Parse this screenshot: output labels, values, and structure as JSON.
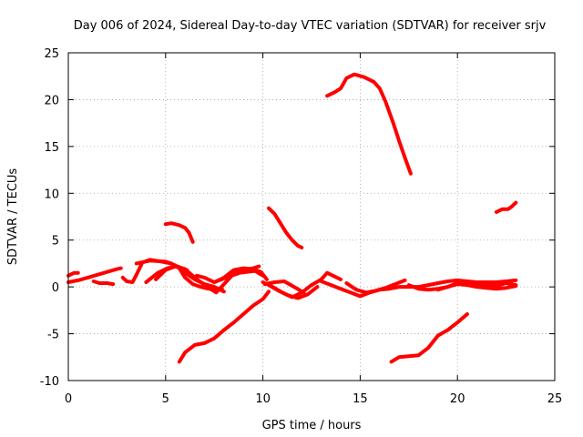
{
  "chart_data": {
    "type": "line",
    "title": "Day 006 of 2024, Sidereal Day-to-day VTEC variation (SDTVAR) for receiver srjv",
    "xlabel": "GPS time / hours",
    "ylabel": "SDTVAR / TECUs",
    "xlim": [
      0,
      25
    ],
    "ylim": [
      -10,
      25
    ],
    "xticks": [
      0,
      5,
      10,
      15,
      20,
      25
    ],
    "yticks": [
      -10,
      -5,
      0,
      5,
      10,
      15,
      20,
      25
    ],
    "grid": true,
    "color": "#ff0000",
    "series": [
      {
        "name": "track-01",
        "x": [
          0.0,
          0.5,
          1.0,
          1.5,
          2.0,
          2.5,
          2.7
        ],
        "y": [
          0.5,
          0.7,
          1.0,
          1.3,
          1.6,
          1.9,
          2.0
        ]
      },
      {
        "name": "track-02",
        "x": [
          0.0,
          0.3,
          0.5
        ],
        "y": [
          1.2,
          1.5,
          1.5
        ]
      },
      {
        "name": "track-03",
        "x": [
          1.3,
          1.6,
          2.0,
          2.3
        ],
        "y": [
          0.6,
          0.4,
          0.4,
          0.3
        ]
      },
      {
        "name": "track-04",
        "x": [
          2.8,
          3.0,
          3.3,
          3.5,
          3.8,
          4.2,
          4.8,
          5.3,
          5.7,
          6.0,
          6.4,
          6.8,
          7.2,
          7.6,
          7.9
        ],
        "y": [
          1.0,
          0.6,
          0.5,
          1.3,
          2.6,
          2.9,
          2.7,
          2.5,
          2.0,
          1.0,
          0.3,
          0.0,
          -0.2,
          -0.3,
          -0.2
        ]
      },
      {
        "name": "track-05",
        "x": [
          3.5,
          4.2,
          5.0,
          5.5,
          6.0,
          6.5,
          7.0,
          7.5,
          8.0
        ],
        "y": [
          2.5,
          2.8,
          2.7,
          2.3,
          1.5,
          0.8,
          0.3,
          0.0,
          -0.5
        ]
      },
      {
        "name": "track-06",
        "x": [
          4.5,
          5.0,
          5.5,
          6.0,
          6.5,
          7.0,
          7.6,
          8.0,
          8.4,
          8.8,
          9.2,
          9.6,
          10.0
        ],
        "y": [
          0.8,
          1.8,
          2.2,
          1.9,
          1.0,
          0.2,
          -0.6,
          0.3,
          1.2,
          1.5,
          1.6,
          1.7,
          1.2
        ]
      },
      {
        "name": "track-07",
        "x": [
          4.0,
          4.6,
          5.1,
          5.6,
          6.1
        ],
        "y": [
          0.5,
          1.5,
          2.0,
          2.2,
          1.8
        ]
      },
      {
        "name": "track-08",
        "x": [
          6.6,
          7.0,
          7.5,
          8.0,
          8.5,
          9.0,
          9.5,
          9.9,
          10.2
        ],
        "y": [
          1.2,
          1.0,
          0.5,
          1.0,
          1.8,
          2.0,
          1.9,
          1.6,
          0.8
        ]
      },
      {
        "name": "track-09",
        "x": [
          7.5,
          8.0,
          8.5,
          9.0,
          9.5,
          9.8
        ],
        "y": [
          0.5,
          0.9,
          1.5,
          1.8,
          2.0,
          2.2
        ]
      },
      {
        "name": "track-10",
        "x": [
          10.0,
          10.5,
          11.0,
          11.5,
          12.0,
          12.5,
          13.0,
          13.3,
          13.6,
          14.0
        ],
        "y": [
          0.5,
          0.0,
          -0.6,
          -1.1,
          -0.6,
          0.2,
          0.8,
          1.5,
          1.2,
          0.8
        ]
      },
      {
        "name": "track-11",
        "x": [
          10.1,
          10.6,
          11.1,
          11.6,
          12.1
        ],
        "y": [
          0.3,
          0.5,
          0.6,
          0.0,
          -0.6
        ]
      },
      {
        "name": "track-12",
        "x": [
          10.3,
          10.8,
          11.3,
          11.8,
          12.3,
          12.8
        ],
        "y": [
          0.2,
          -0.4,
          -0.9,
          -1.2,
          -0.8,
          0.0
        ]
      },
      {
        "name": "track-13",
        "x": [
          13.0,
          13.5,
          14.0,
          14.5,
          15.0,
          15.5,
          16.0,
          16.5,
          17.0,
          17.5,
          18.0,
          18.5,
          19.0,
          19.5,
          20.0,
          20.5,
          21.0,
          21.5,
          22.0,
          22.5,
          23.0
        ],
        "y": [
          0.6,
          0.2,
          -0.2,
          -0.6,
          -1.0,
          -0.6,
          -0.3,
          -0.2,
          0.0,
          0.0,
          0.0,
          0.2,
          0.4,
          0.6,
          0.7,
          0.6,
          0.5,
          0.5,
          0.5,
          0.6,
          0.7
        ]
      },
      {
        "name": "track-14",
        "x": [
          14.3,
          14.8,
          15.3,
          15.8,
          16.3,
          16.8,
          17.3
        ],
        "y": [
          0.4,
          -0.3,
          -0.6,
          -0.4,
          -0.1,
          0.3,
          0.7
        ]
      },
      {
        "name": "track-15",
        "x": [
          17.5,
          18.0,
          18.5,
          19.0,
          19.5,
          20.0,
          20.5,
          21.0,
          21.5,
          22.0,
          22.5,
          23.0
        ],
        "y": [
          0.2,
          -0.2,
          -0.3,
          -0.2,
          0.0,
          0.3,
          0.2,
          0.0,
          -0.1,
          -0.2,
          -0.1,
          0.1
        ]
      },
      {
        "name": "track-16",
        "x": [
          19.0,
          19.5,
          20.0,
          20.5,
          21.0,
          21.5,
          22.0,
          22.5,
          23.0
        ],
        "y": [
          -0.3,
          0.0,
          0.4,
          0.5,
          0.3,
          0.2,
          0.1,
          0.4,
          0.2
        ]
      },
      {
        "name": "track-17",
        "x": [
          5.0,
          5.3,
          5.7,
          6.0,
          6.2,
          6.4
        ],
        "y": [
          6.7,
          6.8,
          6.6,
          6.3,
          5.8,
          4.8
        ]
      },
      {
        "name": "track-18",
        "x": [
          10.3,
          10.6,
          10.9,
          11.2,
          11.5,
          11.8,
          12.0
        ],
        "y": [
          8.4,
          7.8,
          6.8,
          5.8,
          5.0,
          4.4,
          4.2
        ]
      },
      {
        "name": "track-19",
        "x": [
          13.3,
          13.7,
          14.0,
          14.3,
          14.7,
          15.2,
          15.7,
          16.0,
          16.3,
          16.7,
          17.0,
          17.3,
          17.6
        ],
        "y": [
          20.4,
          20.8,
          21.2,
          22.3,
          22.7,
          22.4,
          21.9,
          21.2,
          19.8,
          17.5,
          15.6,
          13.8,
          12.1
        ]
      },
      {
        "name": "track-20",
        "x": [
          22.0,
          22.3,
          22.6,
          22.8,
          23.0
        ],
        "y": [
          8.0,
          8.3,
          8.3,
          8.6,
          9.0
        ]
      },
      {
        "name": "track-21",
        "x": [
          5.7,
          6.0,
          6.5,
          7.0,
          7.5,
          8.0,
          8.5,
          9.0,
          9.5,
          10.0,
          10.3
        ],
        "y": [
          -8.0,
          -7.0,
          -6.2,
          -6.0,
          -5.5,
          -4.6,
          -3.8,
          -2.9,
          -2.0,
          -1.3,
          -0.5
        ]
      },
      {
        "name": "track-22",
        "x": [
          16.6,
          17.0,
          17.5,
          18.0,
          18.5,
          19.0,
          19.5,
          20.0,
          20.5
        ],
        "y": [
          -8.0,
          -7.5,
          -7.4,
          -7.3,
          -6.5,
          -5.2,
          -4.6,
          -3.8,
          -2.9
        ]
      }
    ]
  }
}
